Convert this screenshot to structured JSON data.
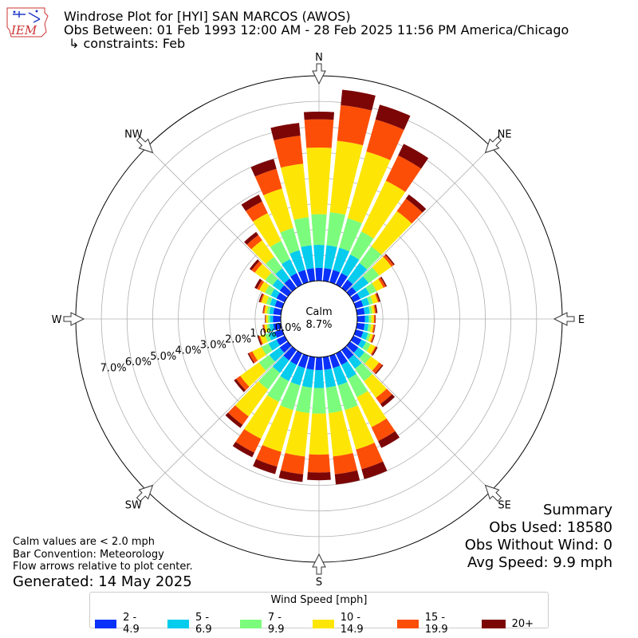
{
  "title": {
    "line1": "Windrose Plot for [HYI] SAN MARCOS (AWOS)",
    "line2": "Obs Between: 01 Feb 1993 12:00 AM - 28 Feb 2025 11:56 PM America/Chicago",
    "line3": "↳ constraints: Feb"
  },
  "logo": {
    "text": "IEM"
  },
  "notes": {
    "line1": "Calm values are < 2.0 mph",
    "line2": "Bar Convention: Meteorology",
    "line3": "Flow arrows relative to plot center.",
    "generated": "Generated: 14 May 2025"
  },
  "summary": {
    "heading": "Summary",
    "obs_used": "Obs Used: 18580",
    "obs_without_wind": "Obs Without Wind: 0",
    "avg_speed": "Avg Speed: 9.9 mph"
  },
  "chart_data": {
    "type": "windrose",
    "calm_label": "Calm",
    "calm_value": "8.7%",
    "radial_unit": "%",
    "radial_ticks": [
      "0.0%",
      "1.0%",
      "2.0%",
      "3.0%",
      "4.0%",
      "5.0%",
      "6.0%",
      "7.0%"
    ],
    "radial_max": 8.0,
    "compass_labels": [
      {
        "label": "N",
        "deg": 0
      },
      {
        "label": "NE",
        "deg": 45
      },
      {
        "label": "E",
        "deg": 90
      },
      {
        "label": "SE",
        "deg": 135
      },
      {
        "label": "S",
        "deg": 180
      },
      {
        "label": "SW",
        "deg": 225
      },
      {
        "label": "W",
        "deg": 270
      },
      {
        "label": "NW",
        "deg": 315
      }
    ],
    "legend_title": "Wind Speed [mph]",
    "bins": [
      {
        "label": "2 - 4.9",
        "color": "#0a31fa"
      },
      {
        "label": "5 - 6.9",
        "color": "#06ccee"
      },
      {
        "label": "7 - 9.9",
        "color": "#7cfc7c"
      },
      {
        "label": "10 - 14.9",
        "color": "#fde605"
      },
      {
        "label": "15 - 19.9",
        "color": "#fd4e07"
      },
      {
        "label": "20+",
        "color": "#7c0606"
      }
    ],
    "directions": [
      0,
      10,
      20,
      30,
      40,
      50,
      60,
      70,
      80,
      90,
      100,
      110,
      120,
      130,
      140,
      150,
      160,
      170,
      180,
      190,
      200,
      210,
      220,
      230,
      240,
      250,
      260,
      270,
      280,
      290,
      300,
      310,
      320,
      330,
      340,
      350
    ],
    "cumulative": [
      [
        0.5,
        1.4,
        2.6,
        5.2,
        6.3,
        6.6
      ],
      [
        0.5,
        1.4,
        2.7,
        5.5,
        6.9,
        7.5
      ],
      [
        0.5,
        1.4,
        2.6,
        5.3,
        6.6,
        7.2
      ],
      [
        0.5,
        1.3,
        2.3,
        4.5,
        5.6,
        6.1
      ],
      [
        0.4,
        1.2,
        2.0,
        3.7,
        4.3,
        4.5
      ],
      [
        0.3,
        0.9,
        1.4,
        2.0,
        2.1,
        2.15
      ],
      [
        0.3,
        0.7,
        1.0,
        1.3,
        1.4,
        1.45
      ],
      [
        0.3,
        0.55,
        0.7,
        0.9,
        0.95,
        1.0
      ],
      [
        0.3,
        0.5,
        0.6,
        0.7,
        0.75,
        0.8
      ],
      [
        0.3,
        0.45,
        0.55,
        0.65,
        0.7,
        0.72
      ],
      [
        0.3,
        0.45,
        0.55,
        0.65,
        0.7,
        0.72
      ],
      [
        0.3,
        0.5,
        0.6,
        0.7,
        0.75,
        0.78
      ],
      [
        0.35,
        0.55,
        0.75,
        0.95,
        1.0,
        1.05
      ],
      [
        0.4,
        0.7,
        1.0,
        1.4,
        1.55,
        1.6
      ],
      [
        0.45,
        0.9,
        1.5,
        2.3,
        2.6,
        2.75
      ],
      [
        0.5,
        1.1,
        1.9,
        3.2,
        3.8,
        4.1
      ],
      [
        0.5,
        1.2,
        2.2,
        3.8,
        4.6,
        5.0
      ],
      [
        0.5,
        1.2,
        2.2,
        3.9,
        4.6,
        5.0
      ],
      [
        0.5,
        1.2,
        2.2,
        3.8,
        4.5,
        4.8
      ],
      [
        0.5,
        1.2,
        2.2,
        3.9,
        4.6,
        4.9
      ],
      [
        0.5,
        1.2,
        2.2,
        3.9,
        4.5,
        4.8
      ],
      [
        0.5,
        1.2,
        2.1,
        3.7,
        4.3,
        4.5
      ],
      [
        0.5,
        1.1,
        1.9,
        3.2,
        3.6,
        3.75
      ],
      [
        0.4,
        0.9,
        1.4,
        2.3,
        2.5,
        2.6
      ],
      [
        0.35,
        0.7,
        1.0,
        1.4,
        1.55,
        1.6
      ],
      [
        0.3,
        0.55,
        0.7,
        0.9,
        0.95,
        1.0
      ],
      [
        0.3,
        0.45,
        0.55,
        0.65,
        0.7,
        0.72
      ],
      [
        0.3,
        0.42,
        0.5,
        0.58,
        0.6,
        0.62
      ],
      [
        0.3,
        0.45,
        0.55,
        0.65,
        0.7,
        0.72
      ],
      [
        0.3,
        0.5,
        0.65,
        0.85,
        0.9,
        0.95
      ],
      [
        0.35,
        0.6,
        0.85,
        1.1,
        1.2,
        1.3
      ],
      [
        0.4,
        0.75,
        1.1,
        1.6,
        1.75,
        1.85
      ],
      [
        0.45,
        0.95,
        1.5,
        2.3,
        2.55,
        2.7
      ],
      [
        0.5,
        1.1,
        1.9,
        3.1,
        3.6,
        3.9
      ],
      [
        0.5,
        1.3,
        2.2,
        3.8,
        4.6,
        5.0
      ],
      [
        0.5,
        1.4,
        2.5,
        4.6,
        5.7,
        6.2
      ]
    ]
  }
}
